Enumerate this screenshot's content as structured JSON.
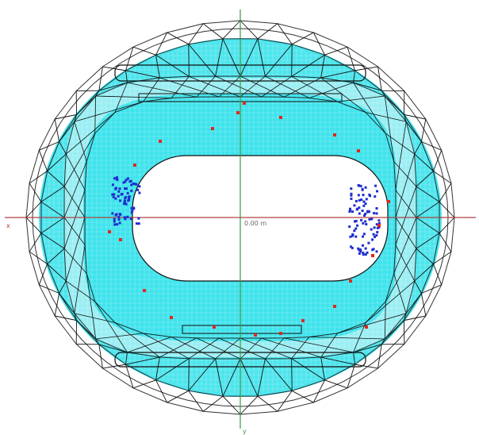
{
  "drawing": {
    "center_label": "0.00 m",
    "x_axis_end_label": "x",
    "y_axis_end_label": "y"
  },
  "colors": {
    "background": "#ffffff",
    "wireframe": "#111111",
    "seating_fill": "#2fe0ea",
    "seating_grid": "#9aeef3",
    "x_axis": "#b04040",
    "y_axis": "#3c9a3c",
    "pitch_fill": "#ffffff",
    "marker_red": "#e0281e",
    "marker_blue": "#1e2ed0"
  },
  "icons": {
    "marker": "small-square-marker"
  }
}
